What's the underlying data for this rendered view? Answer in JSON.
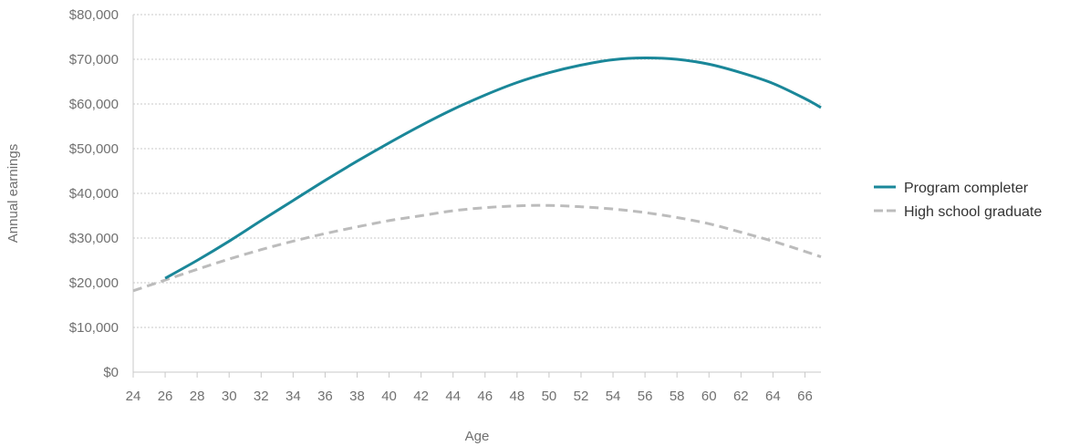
{
  "chart_data": {
    "type": "line",
    "xlabel": "Age",
    "ylabel": "Annual earnings",
    "xlim": [
      24,
      67
    ],
    "ylim": [
      0,
      80000
    ],
    "x_ticks": [
      24,
      26,
      28,
      30,
      32,
      34,
      36,
      38,
      40,
      42,
      44,
      46,
      48,
      50,
      52,
      54,
      56,
      58,
      60,
      62,
      64,
      66
    ],
    "y_ticks": [
      0,
      10000,
      20000,
      30000,
      40000,
      50000,
      60000,
      70000,
      80000
    ],
    "y_tick_labels": [
      "$0",
      "$10,000",
      "$20,000",
      "$30,000",
      "$40,000",
      "$50,000",
      "$60,000",
      "$70,000",
      "$80,000"
    ],
    "grid": "horizontal dotted",
    "legend_position": "right",
    "series": [
      {
        "name": "Program completer",
        "color": "#1a8799",
        "style": "solid",
        "x": [
          26,
          28,
          30,
          32,
          34,
          36,
          38,
          40,
          42,
          44,
          46,
          48,
          50,
          52,
          54,
          56,
          58,
          60,
          62,
          64,
          66,
          67
        ],
        "y": [
          21000,
          25000,
          29300,
          33900,
          38400,
          42900,
          47200,
          51300,
          55200,
          58800,
          62000,
          64800,
          67000,
          68700,
          69900,
          70300,
          70000,
          68900,
          67000,
          64600,
          61200,
          59200
        ]
      },
      {
        "name": "High school graduate",
        "color": "#bcbcbc",
        "style": "dashed",
        "x": [
          24,
          26,
          28,
          30,
          32,
          34,
          36,
          38,
          40,
          42,
          44,
          46,
          48,
          50,
          52,
          54,
          56,
          58,
          60,
          62,
          64,
          66,
          67
        ],
        "y": [
          18200,
          20600,
          23000,
          25300,
          27400,
          29300,
          31000,
          32500,
          33900,
          35000,
          36100,
          36800,
          37200,
          37300,
          37000,
          36500,
          35700,
          34600,
          33200,
          31300,
          29300,
          27000,
          25800
        ]
      }
    ]
  }
}
